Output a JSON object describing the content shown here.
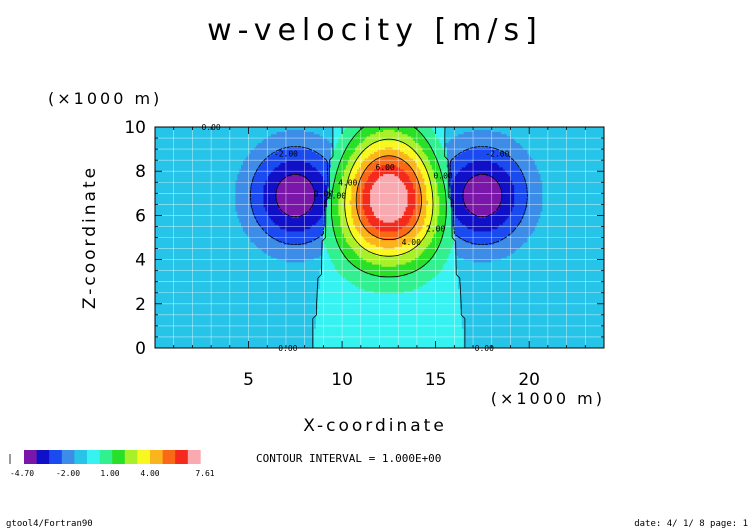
{
  "chart_data": {
    "type": "heatmap",
    "title": "w-velocity [m/s]",
    "xlabel": "X-coordinate",
    "ylabel": "Z-coordinate",
    "x_unit": "(×1000 m)",
    "y_unit": "(×1000 m)",
    "xlim": [
      0,
      24
    ],
    "ylim": [
      0,
      10
    ],
    "x_ticks": [
      5,
      10,
      15,
      20
    ],
    "x_tick_labels": [
      "5",
      "10",
      "15",
      "20"
    ],
    "y_ticks": [
      0,
      2,
      4,
      6,
      8,
      10
    ],
    "y_tick_labels": [
      "0",
      "2",
      "4",
      "6",
      "8",
      "10"
    ],
    "grid": true,
    "updraft": {
      "center_x": 12.5,
      "center_z": 6.8,
      "max": 7.61,
      "half_width": 3.5
    },
    "downdrafts": [
      {
        "center_x": 7.5,
        "center_z": 6.9,
        "min": -4.7
      },
      {
        "center_x": 17.5,
        "center_z": 6.9,
        "min": -4.7
      }
    ],
    "contour_labels": [
      {
        "text": "0.00",
        "x": 3.0,
        "z": 10.0
      },
      {
        "text": "-2.00",
        "x": 7.0,
        "z": 8.8
      },
      {
        "text": "0.00",
        "x": 9.0,
        "z": 7.0
      },
      {
        "text": "2.00",
        "x": 9.7,
        "z": 6.9
      },
      {
        "text": "4.00",
        "x": 10.3,
        "z": 7.5
      },
      {
        "text": "6.00",
        "x": 12.3,
        "z": 8.2
      },
      {
        "text": "4.00",
        "x": 13.7,
        "z": 4.8
      },
      {
        "text": "2.00",
        "x": 15.0,
        "z": 5.4
      },
      {
        "text": "0.00",
        "x": 15.4,
        "z": 7.8
      },
      {
        "text": "-2.00",
        "x": 18.3,
        "z": 8.8
      },
      {
        "text": "0.00",
        "x": 7.1,
        "z": 0.0
      },
      {
        "text": "0.00",
        "x": 17.6,
        "z": 0.0
      }
    ],
    "color_levels": [
      -5,
      -4,
      -3,
      -2,
      -1,
      0,
      1,
      2,
      3,
      4,
      5,
      6,
      7,
      8
    ],
    "colors": [
      "#7a16a8",
      "#1010c8",
      "#1a4bf0",
      "#3d8de8",
      "#27c4e8",
      "#36f2f0",
      "#32f090",
      "#28e028",
      "#a8f02a",
      "#f8f820",
      "#fab41c",
      "#fa6a16",
      "#f42a1c",
      "#f8aab0"
    ],
    "colorbar_tick_labels": [
      "-4.70",
      "-2.00",
      "1.00",
      "4.00",
      "7.61"
    ],
    "contour_interval": "CONTOUR INTERVAL = 1.000E+00"
  },
  "footer": {
    "left": "gtool4/Fortran90",
    "right": "date: 4/ 1/ 8 page: 1"
  }
}
